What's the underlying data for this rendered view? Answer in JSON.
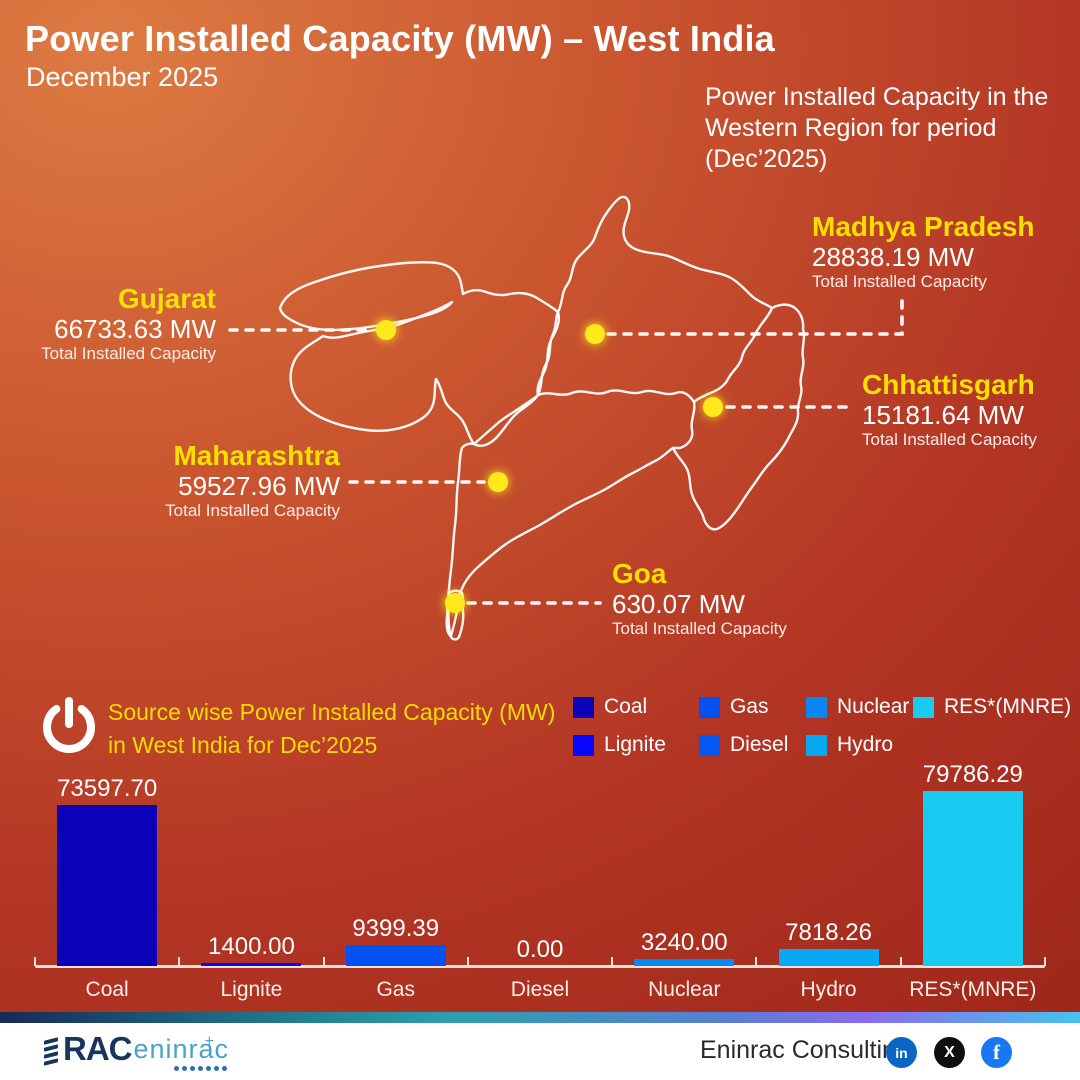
{
  "header": {
    "title": "Power Installed Capacity (MW) – West India",
    "subtitle": "December 2025",
    "note": "Power Installed Capacity in the Western Region for period (Dec’2025)"
  },
  "map": {
    "marker_color": "#FFE81E",
    "states": [
      {
        "id": "gujarat",
        "name": "Gujarat",
        "value": "66733.63 MW",
        "sublabel": "Total Installed Capacity"
      },
      {
        "id": "madhya-pradesh",
        "name": "Madhya Pradesh",
        "value": "28838.19 MW",
        "sublabel": "Total Installed Capacity"
      },
      {
        "id": "chhattisgarh",
        "name": "Chhattisgarh",
        "value": "15181.64 MW",
        "sublabel": "Total Installed Capacity"
      },
      {
        "id": "maharashtra",
        "name": "Maharashtra",
        "value": "59527.96 MW",
        "sublabel": "Total Installed Capacity"
      },
      {
        "id": "goa",
        "name": "Goa",
        "value": "630.07 MW",
        "sublabel": "Total Installed Capacity"
      }
    ]
  },
  "chart_section": {
    "icon": "power-icon",
    "title": "Source wise Power Installed Capacity (MW) in West India for Dec’2025"
  },
  "legend": [
    {
      "label": "Coal",
      "color": "#0B02B8"
    },
    {
      "label": "Lignite",
      "color": "#0707FC"
    },
    {
      "label": "Gas",
      "color": "#0550F0"
    },
    {
      "label": "Diesel",
      "color": "#0757F2"
    },
    {
      "label": "Nuclear",
      "color": "#0B87F2"
    },
    {
      "label": "Hydro",
      "color": "#09A8F2"
    },
    {
      "label": "RES*(MNRE)",
      "color": "#19CBF0"
    }
  ],
  "chart_data": {
    "type": "bar",
    "title": "Source wise Power Installed Capacity (MW) in West India for Dec’2025",
    "categories": [
      "Coal",
      "Lignite",
      "Gas",
      "Diesel",
      "Nuclear",
      "Hydro",
      "RES*(MNRE)"
    ],
    "values": [
      73597.7,
      1400.0,
      9399.39,
      0.0,
      3240.0,
      7818.26,
      79786.29
    ],
    "value_labels": [
      "73597.70",
      "1400.00",
      "9399.39",
      "0.00",
      "3240.00",
      "7818.26",
      "79786.29"
    ],
    "colors": [
      "#0B02B8",
      "#0707FC",
      "#0550F0",
      "#0757F2",
      "#0B87F2",
      "#09A8F2",
      "#19CBF0"
    ],
    "xlabel": "",
    "ylabel": "",
    "ylim": [
      0,
      80000
    ],
    "grid": false,
    "legend_position": "top-right"
  },
  "footer": {
    "logo_rac": "RAC",
    "logo_eninrac": "eninrac",
    "company": "Eninrac Consulting",
    "social": [
      {
        "name": "linkedin",
        "label": "in",
        "color": "#0A66C2"
      },
      {
        "name": "x",
        "label": "X",
        "color": "#0F0F0F"
      },
      {
        "name": "facebook",
        "label": "f",
        "color": "#1877F2"
      }
    ]
  },
  "colors": {
    "background_top": "#DD7B43",
    "background_bottom": "#992317",
    "accent_yellow": "#F8DF00",
    "outline_white": "#FFFFFF",
    "footer_navy": "#16355F",
    "footer_teal": "#4AA3CC"
  }
}
